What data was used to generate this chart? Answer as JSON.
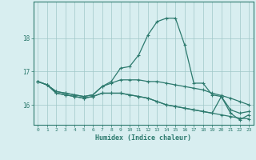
{
  "xlabel": "Humidex (Indice chaleur)",
  "x_values": [
    0,
    1,
    2,
    3,
    4,
    5,
    6,
    7,
    8,
    9,
    10,
    11,
    12,
    13,
    14,
    15,
    16,
    17,
    18,
    19,
    20,
    21,
    22,
    23
  ],
  "line1": [
    16.7,
    16.6,
    16.4,
    16.35,
    16.3,
    16.25,
    16.3,
    16.55,
    16.7,
    17.1,
    17.15,
    17.5,
    18.1,
    18.5,
    18.6,
    18.6,
    17.8,
    16.65,
    16.65,
    16.3,
    16.25,
    15.85,
    15.75,
    15.8
  ],
  "line2": [
    16.7,
    16.6,
    16.4,
    16.35,
    16.3,
    16.25,
    16.3,
    16.55,
    16.65,
    16.75,
    16.75,
    16.75,
    16.7,
    16.7,
    16.65,
    16.6,
    16.55,
    16.5,
    16.45,
    16.35,
    16.28,
    16.2,
    16.1,
    16.0
  ],
  "line3": [
    16.7,
    16.6,
    16.35,
    16.3,
    16.25,
    16.2,
    16.25,
    16.35,
    16.35,
    16.35,
    16.3,
    16.25,
    16.2,
    16.1,
    16.0,
    15.95,
    15.9,
    15.85,
    15.8,
    15.75,
    15.7,
    15.65,
    15.6,
    15.58
  ],
  "line4": [
    16.7,
    16.6,
    16.35,
    16.3,
    16.25,
    16.2,
    16.25,
    16.35,
    16.35,
    16.35,
    16.3,
    16.25,
    16.2,
    16.1,
    16.0,
    15.95,
    15.9,
    15.85,
    15.8,
    15.75,
    16.25,
    15.75,
    15.55,
    15.7
  ],
  "line_color": "#2d7a6e",
  "bg_color": "#d8eef0",
  "grid_color": "#a0c8c8",
  "tick_color": "#2d7a6e",
  "ylim": [
    15.4,
    19.1
  ],
  "yticks": [
    16,
    17,
    18
  ],
  "xlim": [
    -0.5,
    23.5
  ],
  "x_tick_labels": [
    "0",
    "1",
    "2",
    "3",
    "4",
    "5",
    "6",
    "7",
    "8",
    "9",
    "10",
    "11",
    "12",
    "13",
    "14",
    "15",
    "16",
    "17",
    "18",
    "19",
    "20",
    "21",
    "22",
    "23"
  ]
}
